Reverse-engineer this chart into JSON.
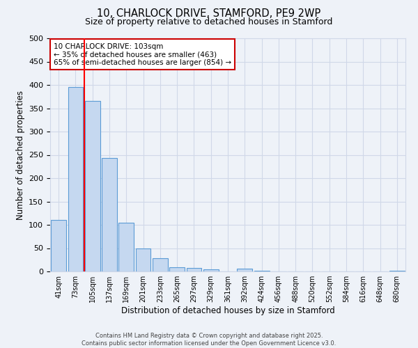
{
  "title1": "10, CHARLOCK DRIVE, STAMFORD, PE9 2WP",
  "title2": "Size of property relative to detached houses in Stamford",
  "xlabel": "Distribution of detached houses by size in Stamford",
  "ylabel": "Number of detached properties",
  "categories": [
    "41sqm",
    "73sqm",
    "105sqm",
    "137sqm",
    "169sqm",
    "201sqm",
    "233sqm",
    "265sqm",
    "297sqm",
    "329sqm",
    "361sqm",
    "392sqm",
    "424sqm",
    "456sqm",
    "488sqm",
    "520sqm",
    "552sqm",
    "584sqm",
    "616sqm",
    "648sqm",
    "680sqm"
  ],
  "values": [
    110,
    395,
    365,
    243,
    105,
    49,
    28,
    9,
    7,
    4,
    0,
    6,
    2,
    0,
    0,
    0,
    0,
    0,
    0,
    0,
    2
  ],
  "bar_color": "#c5d8f0",
  "bar_edge_color": "#5b9bd5",
  "grid_color": "#d0d8e8",
  "background_color": "#eef2f8",
  "red_line_index": 2,
  "annotation_title": "10 CHARLOCK DRIVE: 103sqm",
  "annotation_line1": "← 35% of detached houses are smaller (463)",
  "annotation_line2": "65% of semi-detached houses are larger (854) →",
  "annotation_box_color": "#ffffff",
  "annotation_border_color": "#cc0000",
  "footer1": "Contains HM Land Registry data © Crown copyright and database right 2025.",
  "footer2": "Contains public sector information licensed under the Open Government Licence v3.0.",
  "ylim": [
    0,
    500
  ],
  "yticks": [
    0,
    50,
    100,
    150,
    200,
    250,
    300,
    350,
    400,
    450,
    500
  ]
}
